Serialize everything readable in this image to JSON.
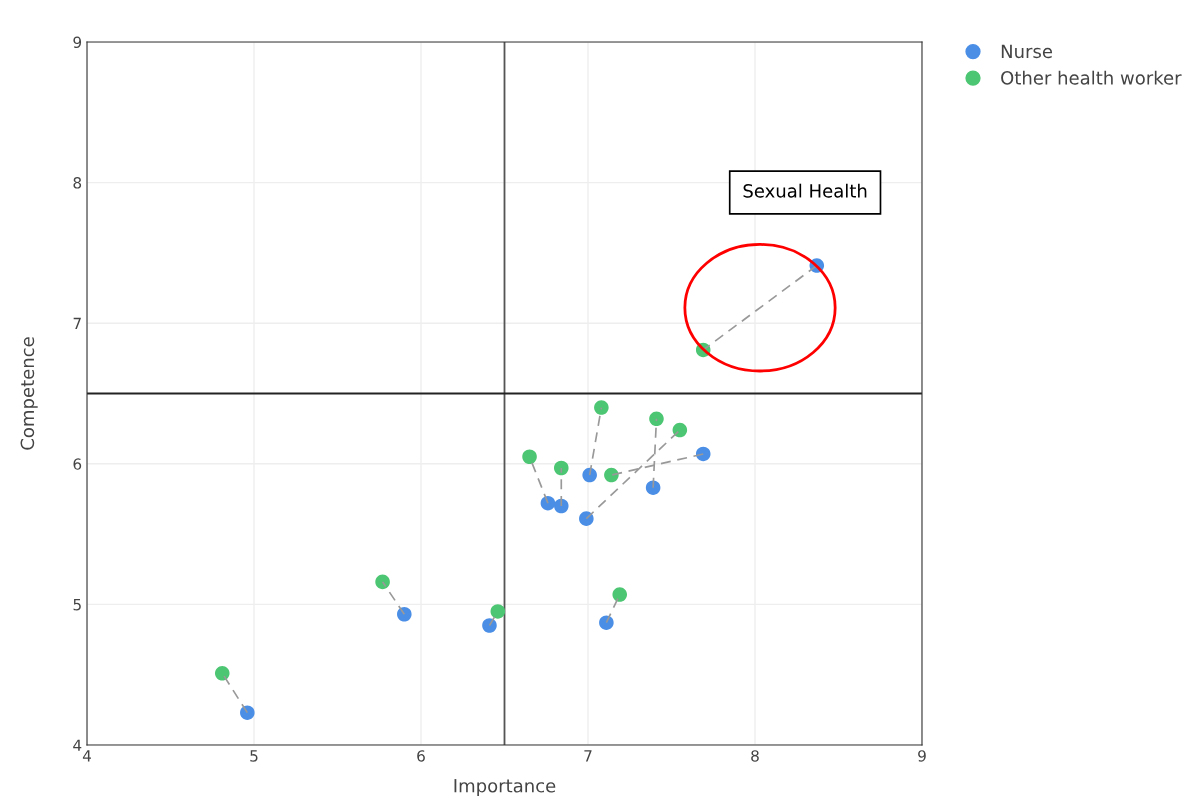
{
  "chart_data": {
    "type": "scatter",
    "xlabel": "Importance",
    "ylabel": "Competence",
    "xlim": [
      4,
      9
    ],
    "xticks": [
      4,
      5,
      6,
      7,
      8,
      9
    ],
    "ylim": [
      4,
      9
    ],
    "yticks": [
      4,
      5,
      6,
      7,
      8,
      9
    ],
    "grid": true,
    "legend": "top right",
    "marker": "circle",
    "annotations": [
      "Sexual Health"
    ],
    "ref_lines": [
      {
        "axis": "x",
        "value": 6.5,
        "color": "#555555"
      },
      {
        "axis": "y",
        "value": 6.5,
        "color": "#222222"
      }
    ],
    "series": [
      {
        "name": "Nurse",
        "color": "#4a8ee6",
        "x": [
          8.37,
          7.69,
          7.39,
          6.99,
          7.01,
          6.76,
          6.84,
          7.11,
          6.41,
          5.9,
          4.96
        ],
        "values": [
          7.41,
          6.07,
          5.83,
          5.61,
          5.92,
          5.72,
          5.7,
          4.87,
          4.85,
          4.93,
          4.23
        ]
      },
      {
        "name": "Other health worker",
        "color": "#4cc672",
        "x": [
          7.69,
          7.14,
          7.41,
          7.55,
          7.08,
          6.65,
          6.84,
          7.19,
          6.46,
          5.77,
          4.81
        ],
        "values": [
          6.81,
          5.92,
          6.32,
          6.24,
          6.4,
          6.05,
          5.97,
          5.07,
          4.95,
          5.16,
          4.51
        ]
      },
      {
        "type": "line",
        "color": "#999999",
        "line_style": "dashed",
        "x": [
          8.37,
          7.69
        ],
        "values": [
          7.41,
          6.81
        ],
        "marker": "none"
      },
      {
        "type": "line",
        "color": "#999999",
        "line_style": "dashed",
        "x": [
          7.69,
          7.14
        ],
        "values": [
          6.07,
          5.92
        ],
        "marker": "none"
      },
      {
        "type": "line",
        "color": "#999999",
        "line_style": "dashed",
        "x": [
          7.39,
          7.41
        ],
        "values": [
          5.83,
          6.32
        ],
        "marker": "none"
      },
      {
        "type": "line",
        "color": "#999999",
        "line_style": "dashed",
        "x": [
          6.99,
          7.55
        ],
        "values": [
          5.61,
          6.24
        ],
        "marker": "none"
      },
      {
        "type": "line",
        "color": "#999999",
        "line_style": "dashed",
        "x": [
          7.01,
          7.08
        ],
        "values": [
          5.92,
          6.4
        ],
        "marker": "none"
      },
      {
        "type": "line",
        "color": "#999999",
        "line_style": "dashed",
        "x": [
          6.76,
          6.65
        ],
        "values": [
          5.72,
          6.05
        ],
        "marker": "none"
      },
      {
        "type": "line",
        "color": "#999999",
        "line_style": "dashed",
        "x": [
          6.84,
          6.84
        ],
        "values": [
          5.7,
          5.97
        ],
        "marker": "none"
      },
      {
        "type": "line",
        "color": "#999999",
        "line_style": "dashed",
        "x": [
          7.11,
          7.19
        ],
        "values": [
          4.87,
          5.07
        ],
        "marker": "none"
      },
      {
        "type": "line",
        "color": "#999999",
        "line_style": "dashed",
        "x": [
          6.41,
          6.46
        ],
        "values": [
          4.85,
          4.95
        ],
        "marker": "none"
      },
      {
        "type": "line",
        "color": "#999999",
        "line_style": "dashed",
        "x": [
          5.9,
          5.77
        ],
        "values": [
          4.93,
          5.16
        ],
        "marker": "none"
      },
      {
        "type": "line",
        "color": "#999999",
        "line_style": "dashed",
        "x": [
          4.96,
          4.81
        ],
        "values": [
          4.23,
          4.51
        ],
        "marker": "none"
      }
    ]
  }
}
